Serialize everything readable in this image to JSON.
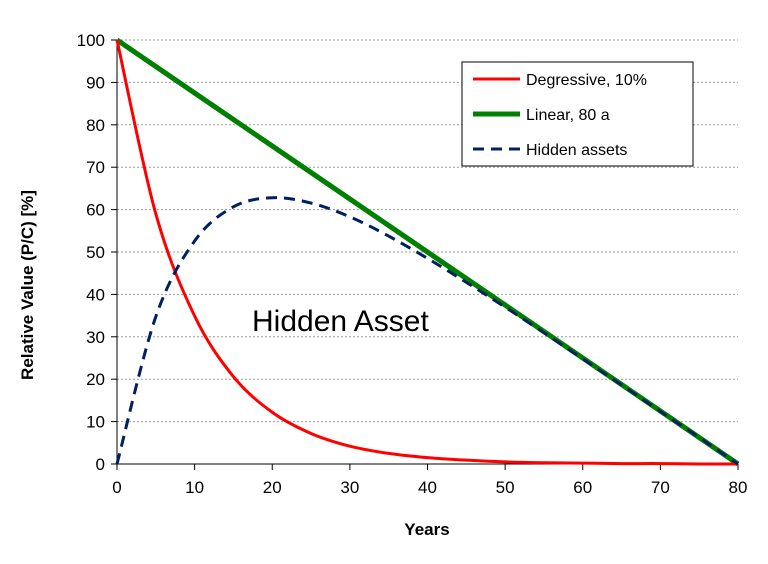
{
  "chart_data": {
    "type": "line",
    "title": "",
    "xlabel": "Years",
    "ylabel": "Relative Value (P/C) [%]",
    "xlim": [
      0,
      80
    ],
    "ylim": [
      0,
      100
    ],
    "x_ticks": [
      "0",
      "10",
      "20",
      "30",
      "40",
      "50",
      "60",
      "70",
      "80"
    ],
    "y_ticks": [
      "0",
      "10",
      "20",
      "30",
      "40",
      "50",
      "60",
      "70",
      "80",
      "90",
      "100"
    ],
    "grid": "horizontal dotted",
    "legend_position": "top-right",
    "annotation": "Hidden Asset",
    "x": [
      0,
      5,
      10,
      15,
      20,
      25,
      30,
      35,
      40,
      45,
      50,
      55,
      60,
      65,
      70,
      75,
      80
    ],
    "series": [
      {
        "name": "Degressive, 10%",
        "color": "#ff0000",
        "style": "solid",
        "values": [
          100,
          59.0,
          34.9,
          20.6,
          12.2,
          7.2,
          4.2,
          2.5,
          1.5,
          0.9,
          0.5,
          0.3,
          0.2,
          0.1,
          0.1,
          0.0,
          0.0
        ]
      },
      {
        "name": "Linear, 80 a",
        "color": "#008000",
        "style": "solid",
        "values": [
          100,
          93.75,
          87.5,
          81.25,
          75,
          68.75,
          62.5,
          56.25,
          50,
          43.75,
          37.5,
          31.25,
          25,
          18.75,
          12.5,
          6.25,
          0
        ]
      },
      {
        "name": "Hidden assets",
        "color": "#002060",
        "style": "dashed",
        "values": [
          0,
          34.75,
          52.6,
          60.65,
          62.8,
          61.55,
          58.3,
          53.75,
          48.5,
          42.85,
          37.0,
          30.95,
          24.8,
          18.65,
          12.4,
          6.25,
          0
        ]
      }
    ]
  }
}
